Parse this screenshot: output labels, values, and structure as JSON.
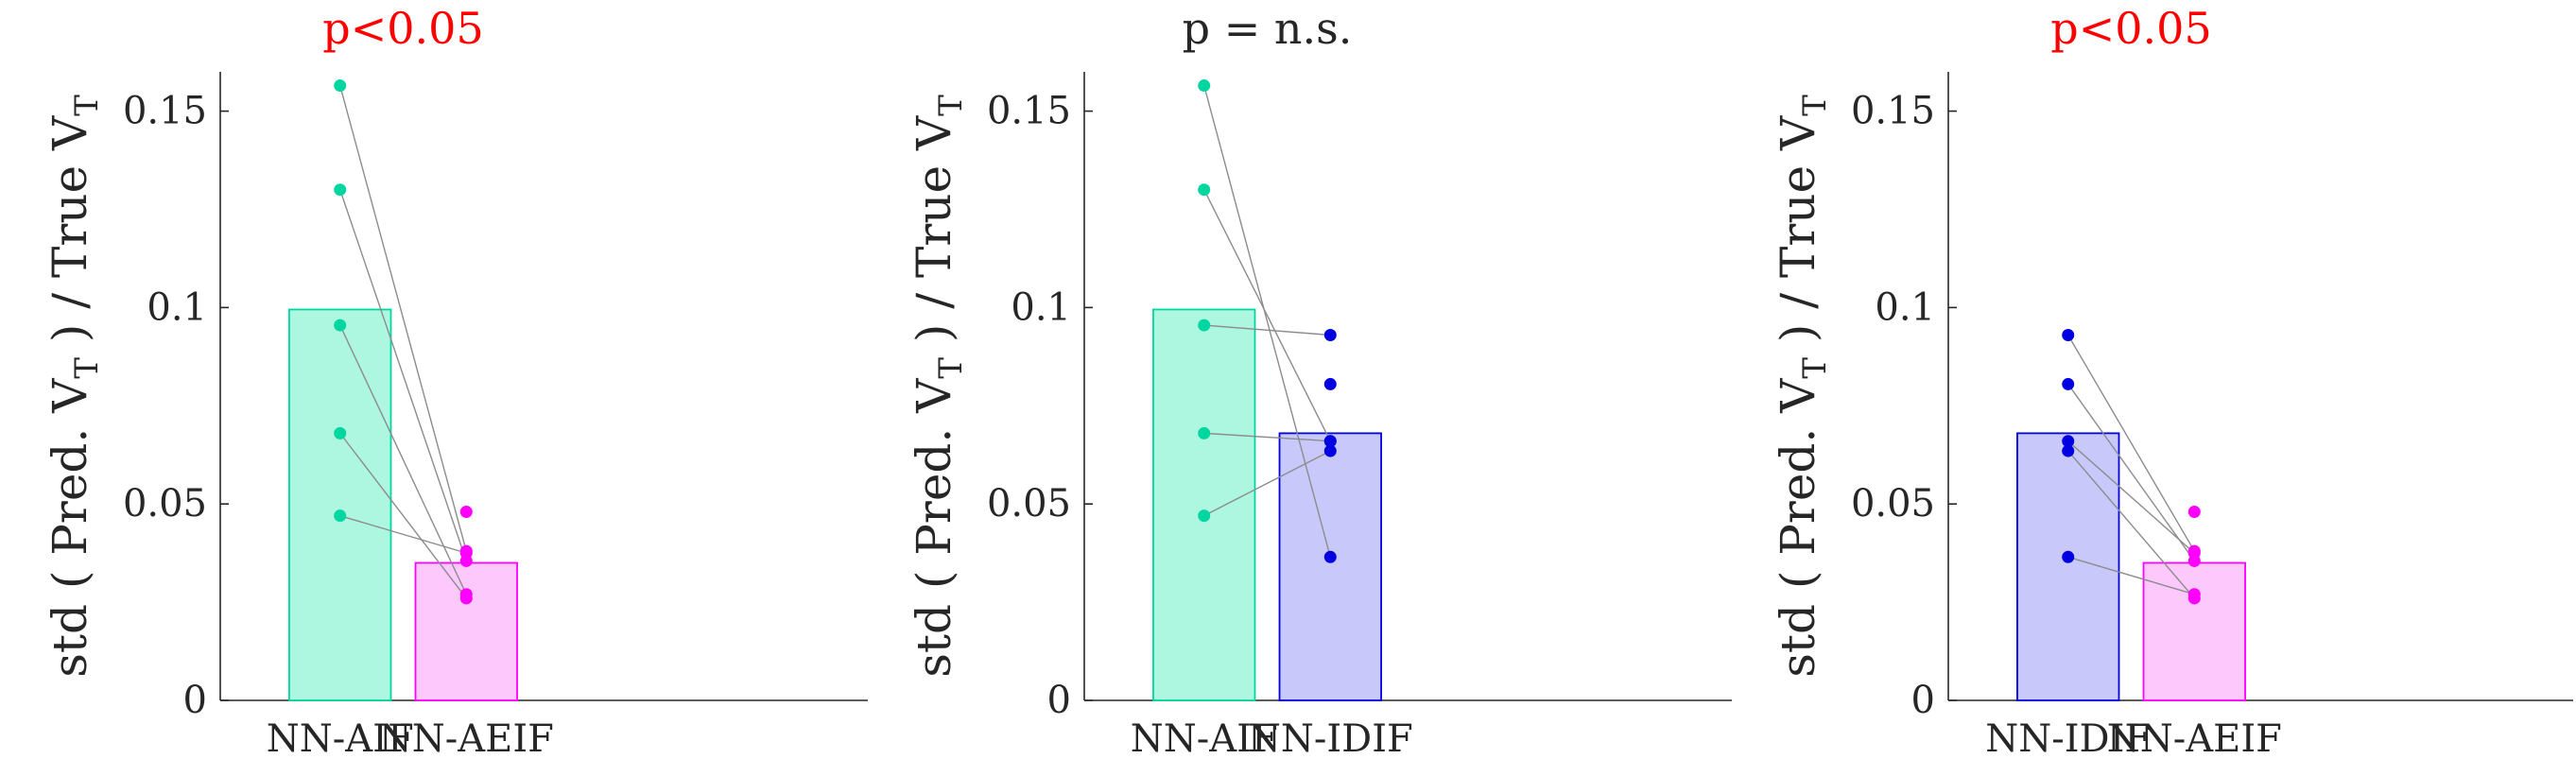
{
  "chart_data": [
    {
      "type": "bar",
      "title": "p<0.05",
      "title_color": "#ff0000",
      "ylabel_parts": [
        "std ( Pred. V",
        "T",
        " ) / True V",
        "T"
      ],
      "categories": [
        "NN-AIF",
        "NN-AEIF"
      ],
      "bar_values": [
        0.0995,
        0.035
      ],
      "bar_fill": [
        "#adf7e0",
        "#fdc9fd"
      ],
      "bar_edge": [
        "#00d6a0",
        "#ff00ff"
      ],
      "point_color": [
        "#00d6a0",
        "#ff00ff"
      ],
      "paired_points": [
        [
          0.1565,
          0.038
        ],
        [
          0.13,
          0.0355
        ],
        [
          0.0955,
          0.027
        ],
        [
          0.068,
          0.026
        ],
        [
          0.047,
          0.0375
        ]
      ],
      "extra_points": [
        [
          null,
          0.048
        ]
      ],
      "yticks": [
        0,
        0.05,
        0.1,
        0.15
      ],
      "ytick_labels": [
        "0",
        "0.05",
        "0.1",
        "0.15"
      ],
      "ylim": [
        0,
        0.16
      ],
      "grid": false
    },
    {
      "type": "bar",
      "title": "p = n.s.",
      "title_color": "#262626",
      "ylabel_parts": [
        "std ( Pred. V",
        "T",
        " ) / True V",
        "T"
      ],
      "categories": [
        "NN-AIF",
        "NN-IDIF"
      ],
      "bar_values": [
        0.0995,
        0.068
      ],
      "bar_fill": [
        "#adf7e0",
        "#c8c8fb"
      ],
      "bar_edge": [
        "#00d6a0",
        "#0000e0"
      ],
      "point_color": [
        "#00d6a0",
        "#0000e0"
      ],
      "paired_points": [
        [
          0.1565,
          0.0365
        ],
        [
          0.13,
          0.066
        ],
        [
          0.0955,
          0.093
        ],
        [
          0.068,
          0.066
        ],
        [
          0.047,
          0.0635
        ]
      ],
      "extra_points": [
        [
          null,
          0.0805
        ]
      ],
      "yticks": [
        0,
        0.05,
        0.1,
        0.15
      ],
      "ytick_labels": [
        "0",
        "0.05",
        "0.1",
        "0.15"
      ],
      "ylim": [
        0,
        0.16
      ],
      "grid": false
    },
    {
      "type": "bar",
      "title": "p<0.05",
      "title_color": "#ff0000",
      "ylabel_parts": [
        "std ( Pred. V",
        "T",
        " ) / True V",
        "T"
      ],
      "categories": [
        "NN-IDIF",
        "NN-AEIF"
      ],
      "bar_values": [
        0.068,
        0.035
      ],
      "bar_fill": [
        "#c8c8fb",
        "#fdc9fd"
      ],
      "bar_edge": [
        "#0000e0",
        "#ff00ff"
      ],
      "point_color": [
        "#0000e0",
        "#ff00ff"
      ],
      "paired_points": [
        [
          0.093,
          0.038
        ],
        [
          0.0805,
          0.0355
        ],
        [
          0.066,
          0.0375
        ],
        [
          0.0635,
          0.026
        ],
        [
          0.0365,
          0.027
        ]
      ],
      "extra_points": [
        [
          null,
          0.048
        ]
      ],
      "yticks": [
        0,
        0.05,
        0.1,
        0.15
      ],
      "ytick_labels": [
        "0",
        "0.05",
        "0.1",
        "0.15"
      ],
      "ylim": [
        0,
        0.16
      ],
      "grid": false
    }
  ]
}
